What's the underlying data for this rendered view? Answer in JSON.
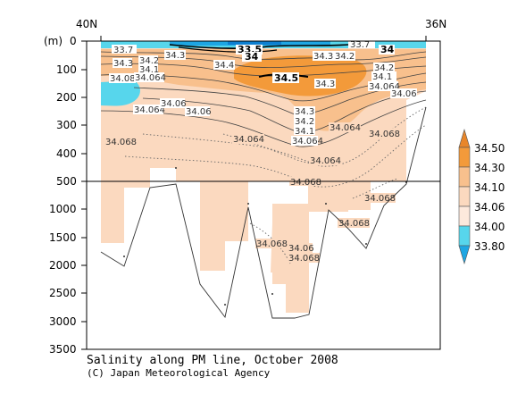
{
  "chart_data": {
    "type": "heatmap",
    "title": "Salinity along PM line, October 2008",
    "credit": "(C) Japan Meteorological Agency",
    "ylabel": "(m)",
    "top_labels": [
      "40N",
      "36N"
    ],
    "y_ticks_upper": [
      0,
      100,
      200,
      300,
      400,
      500
    ],
    "y_ticks_lower": [
      1000,
      1500,
      2000,
      2500,
      3000,
      3500
    ],
    "y_axis": {
      "break_at": 500,
      "upper_range": [
        0,
        500
      ],
      "lower_range": [
        500,
        3500
      ]
    },
    "colorbar": {
      "labels": [
        "34.50",
        "34.30",
        "34.10",
        "34.06",
        "34.00",
        "33.80"
      ],
      "colors": [
        "#f39a3a",
        "#f8c08d",
        "#fbd9bf",
        "#fde9dc",
        "#57d6ec",
        "#1ea6e3"
      ]
    },
    "contour_labels": [
      {
        "text": "34.3",
        "bold": false
      },
      {
        "text": "34.2",
        "bold": false
      },
      {
        "text": "34.1",
        "bold": false
      },
      {
        "text": "34.08",
        "bold": false
      },
      {
        "text": "34.064",
        "bold": false
      },
      {
        "text": "34.06",
        "bold": false
      },
      {
        "text": "34.068",
        "bold": false
      },
      {
        "text": "33.5",
        "bold": true
      },
      {
        "text": "34",
        "bold": true
      },
      {
        "text": "34.5",
        "bold": true
      },
      {
        "text": "34.4",
        "bold": false
      },
      {
        "text": "33.7",
        "bold": false
      }
    ],
    "bathymetry_m": [
      {
        "section": 1,
        "depth": 1750
      },
      {
        "section": 2,
        "depth": 2000
      },
      {
        "section": 3,
        "depth": 500
      },
      {
        "section": 4,
        "depth": 2300
      },
      {
        "section": 5,
        "depth": 2950
      },
      {
        "section": 6,
        "depth": 950
      },
      {
        "section": 7,
        "depth": 2950
      },
      {
        "section": 8,
        "depth": 2900
      },
      {
        "section": 9,
        "depth": 1000
      },
      {
        "section": 10,
        "depth": 1650
      },
      {
        "section": 11,
        "depth": 1000
      },
      {
        "section": 12,
        "depth": 500
      },
      {
        "section": 13,
        "depth": 200
      }
    ]
  }
}
